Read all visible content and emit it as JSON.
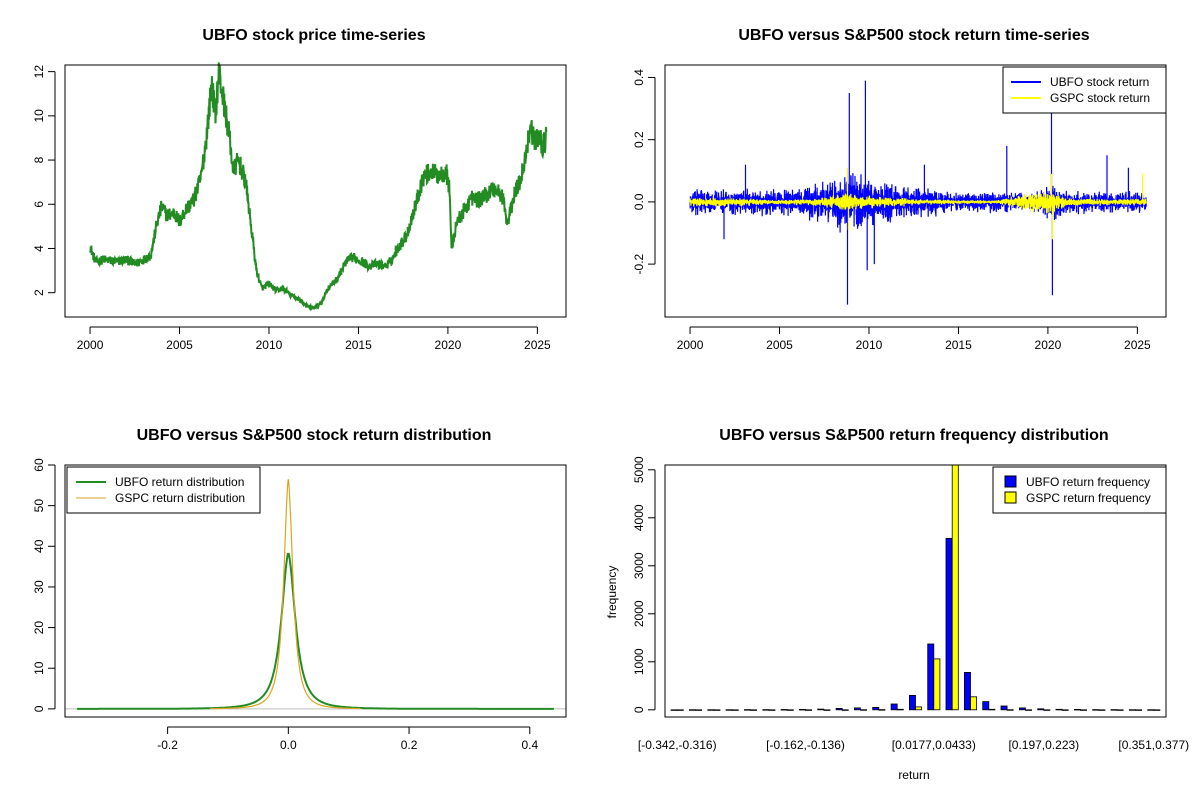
{
  "colors": {
    "ubfo_price": "#228B22",
    "ubfo_return": "#0000FF",
    "gspc_return": "#FFFF00",
    "ubfo_density": "#228B22",
    "gspc_density": "#DAA520",
    "bar_ubfo": "#0000FF",
    "bar_gspc": "#FFFF00",
    "baseline": "#BEBEBE"
  },
  "chart_data": [
    {
      "type": "line",
      "title": "UBFO stock price time-series",
      "xlabel": "",
      "ylabel": "",
      "xlim": [
        1998.6,
        2026.6
      ],
      "ylim": [
        0.9,
        12.3
      ],
      "xticks": [
        2000,
        2005,
        2010,
        2015,
        2020,
        2025
      ],
      "yticks": [
        2,
        4,
        6,
        8,
        10,
        12
      ],
      "series": [
        {
          "color": "ubfo_price",
          "points": [
            [
              2000.0,
              4.1
            ],
            [
              2000.3,
              3.4
            ],
            [
              2000.8,
              3.5
            ],
            [
              2001.5,
              3.4
            ],
            [
              2002.0,
              3.5
            ],
            [
              2002.5,
              3.3
            ],
            [
              2003.0,
              3.5
            ],
            [
              2003.4,
              3.7
            ],
            [
              2003.7,
              5.0
            ],
            [
              2004.0,
              5.9
            ],
            [
              2004.3,
              5.5
            ],
            [
              2004.7,
              5.6
            ],
            [
              2005.0,
              5.2
            ],
            [
              2005.3,
              5.7
            ],
            [
              2005.8,
              6.2
            ],
            [
              2006.2,
              7.2
            ],
            [
              2006.5,
              9.0
            ],
            [
              2006.8,
              11.5
            ],
            [
              2007.0,
              10.0
            ],
            [
              2007.2,
              12.0
            ],
            [
              2007.5,
              10.5
            ],
            [
              2007.8,
              9.0
            ],
            [
              2008.0,
              7.5
            ],
            [
              2008.3,
              8.0
            ],
            [
              2008.7,
              7.0
            ],
            [
              2009.0,
              5.0
            ],
            [
              2009.3,
              3.0
            ],
            [
              2009.6,
              2.2
            ],
            [
              2010.0,
              2.4
            ],
            [
              2010.4,
              2.1
            ],
            [
              2010.8,
              2.2
            ],
            [
              2011.2,
              1.9
            ],
            [
              2011.7,
              1.7
            ],
            [
              2012.1,
              1.4
            ],
            [
              2012.5,
              1.3
            ],
            [
              2012.9,
              1.5
            ],
            [
              2013.3,
              2.2
            ],
            [
              2013.8,
              2.6
            ],
            [
              2014.3,
              3.4
            ],
            [
              2014.7,
              3.6
            ],
            [
              2015.2,
              3.4
            ],
            [
              2015.6,
              3.2
            ],
            [
              2016.0,
              3.3
            ],
            [
              2016.5,
              3.2
            ],
            [
              2016.8,
              3.4
            ],
            [
              2017.2,
              4.0
            ],
            [
              2017.7,
              4.6
            ],
            [
              2018.2,
              6.0
            ],
            [
              2018.6,
              7.2
            ],
            [
              2019.0,
              7.5
            ],
            [
              2019.5,
              7.3
            ],
            [
              2019.9,
              7.5
            ],
            [
              2020.1,
              6.6
            ],
            [
              2020.2,
              4.0
            ],
            [
              2020.5,
              5.2
            ],
            [
              2020.9,
              5.7
            ],
            [
              2021.3,
              6.3
            ],
            [
              2021.7,
              6.2
            ],
            [
              2022.1,
              6.4
            ],
            [
              2022.5,
              6.7
            ],
            [
              2022.8,
              6.6
            ],
            [
              2023.1,
              6.3
            ],
            [
              2023.3,
              5.0
            ],
            [
              2023.7,
              6.4
            ],
            [
              2024.0,
              7.0
            ],
            [
              2024.3,
              8.0
            ],
            [
              2024.6,
              9.5
            ],
            [
              2024.9,
              8.8
            ],
            [
              2025.1,
              9.2
            ],
            [
              2025.3,
              8.6
            ],
            [
              2025.5,
              9.0
            ]
          ]
        }
      ]
    },
    {
      "type": "line",
      "title": "UBFO versus S&P500 stock return time-series",
      "xlabel": "",
      "ylabel": "",
      "xlim": [
        1998.6,
        2026.6
      ],
      "ylim": [
        -0.37,
        0.44
      ],
      "xticks": [
        2000,
        2005,
        2010,
        2015,
        2020,
        2025
      ],
      "yticks": [
        -0.2,
        0.0,
        0.2,
        0.4
      ],
      "legend": {
        "position": "top-right",
        "entries": [
          {
            "label": "UBFO stock return",
            "color": "ubfo_return"
          },
          {
            "label": "GSPC stock return",
            "color": "gspc_return"
          }
        ]
      },
      "series": [
        {
          "name": "UBFO stock return",
          "color": "ubfo_return",
          "x_range": [
            2000.0,
            2025.5
          ],
          "volatility_by_year": [
            [
              2000,
              0.04
            ],
            [
              2002,
              0.035
            ],
            [
              2004,
              0.04
            ],
            [
              2006,
              0.04
            ],
            [
              2008,
              0.07
            ],
            [
              2009,
              0.09
            ],
            [
              2010,
              0.07
            ],
            [
              2011,
              0.06
            ],
            [
              2013,
              0.04
            ],
            [
              2015,
              0.03
            ],
            [
              2017,
              0.03
            ],
            [
              2019,
              0.025
            ],
            [
              2020,
              0.06
            ],
            [
              2021,
              0.035
            ],
            [
              2023,
              0.03
            ],
            [
              2025,
              0.03
            ]
          ],
          "spikes": [
            [
              2003.1,
              0.12
            ],
            [
              2008.8,
              -0.33
            ],
            [
              2008.9,
              0.35
            ],
            [
              2009.8,
              0.39
            ],
            [
              2009.9,
              -0.22
            ],
            [
              2010.3,
              -0.2
            ],
            [
              2013.1,
              0.12
            ],
            [
              2017.7,
              0.18
            ],
            [
              2020.2,
              0.3
            ],
            [
              2020.25,
              -0.3
            ],
            [
              2023.3,
              0.15
            ],
            [
              2024.5,
              0.11
            ],
            [
              2001.9,
              -0.12
            ]
          ]
        },
        {
          "name": "GSPC stock return",
          "color": "gspc_return",
          "x_range": [
            2000.0,
            2025.5
          ],
          "volatility_by_year": [
            [
              2000,
              0.015
            ],
            [
              2003,
              0.012
            ],
            [
              2005,
              0.007
            ],
            [
              2007,
              0.01
            ],
            [
              2008.8,
              0.03
            ],
            [
              2009.5,
              0.02
            ],
            [
              2011,
              0.015
            ],
            [
              2013,
              0.008
            ],
            [
              2017,
              0.005
            ],
            [
              2020.2,
              0.04
            ],
            [
              2021,
              0.012
            ],
            [
              2023,
              0.01
            ],
            [
              2025,
              0.01
            ]
          ],
          "spikes": [
            [
              2008.8,
              0.11
            ],
            [
              2008.85,
              -0.09
            ],
            [
              2020.2,
              0.09
            ],
            [
              2020.25,
              -0.12
            ],
            [
              2025.3,
              0.09
            ]
          ]
        }
      ]
    },
    {
      "type": "line",
      "title": "UBFO versus S&P500 stock return distribution",
      "xlabel": "",
      "ylabel": "",
      "xlim": [
        -0.37,
        0.46
      ],
      "ylim": [
        -2,
        60
      ],
      "xticks": [
        -0.2,
        0.0,
        0.2,
        0.4
      ],
      "yticks": [
        0,
        10,
        20,
        30,
        40,
        50,
        60
      ],
      "legend": {
        "position": "top-left",
        "entries": [
          {
            "label": "UBFO return distribution",
            "color": "ubfo_density"
          },
          {
            "label": "GSPC return distribution",
            "color": "gspc_density"
          }
        ]
      },
      "series": [
        {
          "name": "UBFO return distribution",
          "color": "ubfo_density",
          "x_range": [
            -0.35,
            0.44
          ],
          "peak": 38.5,
          "center": 0.0,
          "scale": 0.013
        },
        {
          "name": "GSPC return distribution",
          "color": "gspc_density",
          "x_range": [
            -0.13,
            0.12
          ],
          "peak": 56.5,
          "center": 0.0,
          "scale": 0.0085
        }
      ]
    },
    {
      "type": "bar",
      "title": "UBFO versus S&P500 return frequency distribution",
      "xlabel": "return",
      "ylabel": "frequency",
      "ylim": [
        0,
        5100
      ],
      "yticks": [
        0,
        1000,
        2000,
        3000,
        4000,
        5000
      ],
      "categories_count": 27,
      "tick_labels": [
        {
          "index": 0,
          "label": "[-0.342,-0.316)"
        },
        {
          "index": 7,
          "label": "[-0.162,-0.136)"
        },
        {
          "index": 14,
          "label": "[0.0177,0.0433)"
        },
        {
          "index": 20,
          "label": "[0.197,0.223)"
        },
        {
          "index": 26,
          "label": "[0.351,0.377)"
        }
      ],
      "legend": {
        "position": "top-right",
        "entries": [
          {
            "label": "UBFO return frequency",
            "color": "bar_ubfo"
          },
          {
            "label": "GSPC return frequency",
            "color": "bar_gspc"
          }
        ]
      },
      "series": [
        {
          "name": "UBFO return frequency",
          "color": "bar_ubfo",
          "values": [
            1,
            2,
            2,
            3,
            4,
            5,
            6,
            8,
            15,
            30,
            40,
            50,
            120,
            300,
            1370,
            3570,
            780,
            170,
            80,
            40,
            20,
            10,
            8,
            5,
            4,
            3,
            2
          ]
        },
        {
          "name": "GSPC return frequency",
          "color": "bar_gspc",
          "values": [
            0,
            0,
            0,
            0,
            0,
            0,
            0,
            0,
            0,
            0,
            2,
            5,
            10,
            60,
            1060,
            5100,
            270,
            10,
            2,
            0,
            0,
            0,
            0,
            0,
            0,
            0,
            0
          ]
        }
      ]
    }
  ]
}
